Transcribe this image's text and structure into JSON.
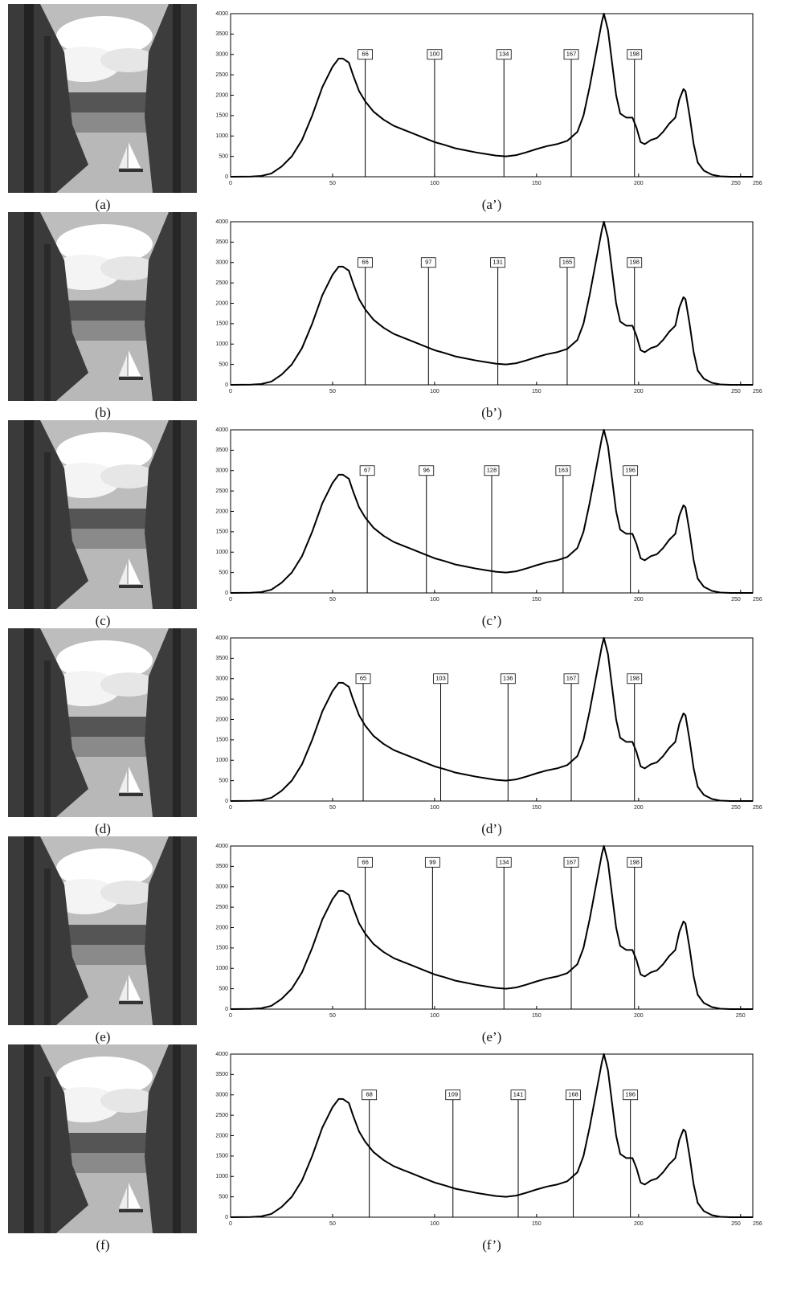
{
  "chart_data": [
    {
      "type": "line",
      "image_label": "(a)",
      "caption": "(a’)",
      "color": "#000000",
      "x": [
        0,
        10,
        15,
        20,
        25,
        30,
        35,
        40,
        45,
        50,
        53,
        55,
        58,
        60,
        63,
        66,
        70,
        75,
        80,
        85,
        90,
        95,
        100,
        105,
        110,
        115,
        120,
        125,
        130,
        135,
        140,
        145,
        150,
        155,
        160,
        165,
        170,
        173,
        176,
        179,
        182,
        183,
        185,
        187,
        189,
        191,
        194,
        197,
        199,
        201,
        203,
        206,
        209,
        212,
        215,
        218,
        220,
        222,
        223,
        225,
        227,
        229,
        232,
        236,
        240,
        245,
        256
      ],
      "values": [
        0,
        5,
        20,
        80,
        250,
        500,
        900,
        1500,
        2200,
        2700,
        2900,
        2900,
        2800,
        2500,
        2100,
        1850,
        1600,
        1400,
        1250,
        1150,
        1050,
        950,
        850,
        780,
        700,
        650,
        600,
        560,
        520,
        500,
        530,
        600,
        680,
        750,
        800,
        880,
        1100,
        1500,
        2200,
        3000,
        3800,
        4000,
        3600,
        2800,
        2000,
        1550,
        1450,
        1450,
        1200,
        850,
        800,
        900,
        950,
        1100,
        1300,
        1450,
        1900,
        2150,
        2100,
        1500,
        800,
        350,
        150,
        50,
        10,
        0,
        0
      ],
      "thresholds": [
        66,
        100,
        134,
        167,
        198
      ],
      "xlim": [
        0,
        256
      ],
      "ylim": [
        0,
        4000
      ],
      "xticks": [
        0,
        50,
        100,
        150,
        200,
        250,
        256
      ],
      "yticks": [
        0,
        500,
        1000,
        1500,
        2000,
        2500,
        3000,
        3500,
        4000
      ]
    },
    {
      "type": "line",
      "image_label": "(b)",
      "caption": "(b’)",
      "color": "#000000",
      "x": [
        0,
        10,
        15,
        20,
        25,
        30,
        35,
        40,
        45,
        50,
        53,
        55,
        58,
        60,
        63,
        66,
        70,
        75,
        80,
        85,
        90,
        95,
        100,
        105,
        110,
        115,
        120,
        125,
        130,
        135,
        140,
        145,
        150,
        155,
        160,
        165,
        170,
        173,
        176,
        179,
        182,
        183,
        185,
        187,
        189,
        191,
        194,
        197,
        199,
        201,
        203,
        206,
        209,
        212,
        215,
        218,
        220,
        222,
        223,
        225,
        227,
        229,
        232,
        236,
        240,
        245,
        256
      ],
      "values": [
        0,
        5,
        20,
        80,
        250,
        500,
        900,
        1500,
        2200,
        2700,
        2900,
        2900,
        2800,
        2500,
        2100,
        1850,
        1600,
        1400,
        1250,
        1150,
        1050,
        950,
        850,
        780,
        700,
        650,
        600,
        560,
        520,
        500,
        530,
        600,
        680,
        750,
        800,
        880,
        1100,
        1500,
        2200,
        3000,
        3800,
        4000,
        3600,
        2800,
        2000,
        1550,
        1450,
        1450,
        1200,
        850,
        800,
        900,
        950,
        1100,
        1300,
        1450,
        1900,
        2150,
        2100,
        1500,
        800,
        350,
        150,
        50,
        10,
        0,
        0
      ],
      "thresholds": [
        66,
        97,
        131,
        165,
        198
      ],
      "xlim": [
        0,
        256
      ],
      "ylim": [
        0,
        4000
      ],
      "xticks": [
        0,
        50,
        100,
        150,
        200,
        250,
        256
      ],
      "yticks": [
        0,
        500,
        1000,
        1500,
        2000,
        2500,
        3000,
        3500,
        4000
      ]
    },
    {
      "type": "line",
      "image_label": "(c)",
      "caption": "(c’)",
      "color": "#000000",
      "x": [
        0,
        10,
        15,
        20,
        25,
        30,
        35,
        40,
        45,
        50,
        53,
        55,
        58,
        60,
        63,
        66,
        70,
        75,
        80,
        85,
        90,
        95,
        100,
        105,
        110,
        115,
        120,
        125,
        130,
        135,
        140,
        145,
        150,
        155,
        160,
        165,
        170,
        173,
        176,
        179,
        182,
        183,
        185,
        187,
        189,
        191,
        194,
        197,
        199,
        201,
        203,
        206,
        209,
        212,
        215,
        218,
        220,
        222,
        223,
        225,
        227,
        229,
        232,
        236,
        240,
        245,
        256
      ],
      "values": [
        0,
        5,
        20,
        80,
        250,
        500,
        900,
        1500,
        2200,
        2700,
        2900,
        2900,
        2800,
        2500,
        2100,
        1850,
        1600,
        1400,
        1250,
        1150,
        1050,
        950,
        850,
        780,
        700,
        650,
        600,
        560,
        520,
        500,
        530,
        600,
        680,
        750,
        800,
        880,
        1100,
        1500,
        2200,
        3000,
        3800,
        4000,
        3600,
        2800,
        2000,
        1550,
        1450,
        1450,
        1200,
        850,
        800,
        900,
        950,
        1100,
        1300,
        1450,
        1900,
        2150,
        2100,
        1500,
        800,
        350,
        150,
        50,
        10,
        0,
        0
      ],
      "thresholds": [
        67,
        96,
        128,
        163,
        196
      ],
      "xlim": [
        0,
        256
      ],
      "ylim": [
        0,
        4000
      ],
      "xticks": [
        0,
        50,
        100,
        150,
        200,
        250,
        256
      ],
      "yticks": [
        0,
        500,
        1000,
        1500,
        2000,
        2500,
        3000,
        3500,
        4000
      ]
    },
    {
      "type": "line",
      "image_label": "(d)",
      "caption": "(d’)",
      "color": "#000000",
      "x": [
        0,
        10,
        15,
        20,
        25,
        30,
        35,
        40,
        45,
        50,
        53,
        55,
        58,
        60,
        63,
        66,
        70,
        75,
        80,
        85,
        90,
        95,
        100,
        105,
        110,
        115,
        120,
        125,
        130,
        135,
        140,
        145,
        150,
        155,
        160,
        165,
        170,
        173,
        176,
        179,
        182,
        183,
        185,
        187,
        189,
        191,
        194,
        197,
        199,
        201,
        203,
        206,
        209,
        212,
        215,
        218,
        220,
        222,
        223,
        225,
        227,
        229,
        232,
        236,
        240,
        245,
        256
      ],
      "values": [
        0,
        5,
        20,
        80,
        250,
        500,
        900,
        1500,
        2200,
        2700,
        2900,
        2900,
        2800,
        2500,
        2100,
        1850,
        1600,
        1400,
        1250,
        1150,
        1050,
        950,
        850,
        780,
        700,
        650,
        600,
        560,
        520,
        500,
        530,
        600,
        680,
        750,
        800,
        880,
        1100,
        1500,
        2200,
        3000,
        3800,
        4000,
        3600,
        2800,
        2000,
        1550,
        1450,
        1450,
        1200,
        850,
        800,
        900,
        950,
        1100,
        1300,
        1450,
        1900,
        2150,
        2100,
        1500,
        800,
        350,
        150,
        50,
        10,
        0,
        0
      ],
      "thresholds": [
        65,
        103,
        136,
        167,
        198
      ],
      "xlim": [
        0,
        256
      ],
      "ylim": [
        0,
        4000
      ],
      "xticks": [
        0,
        50,
        100,
        150,
        200,
        250,
        256
      ],
      "yticks": [
        0,
        500,
        1000,
        1500,
        2000,
        2500,
        3000,
        3500,
        4000
      ]
    },
    {
      "type": "line",
      "image_label": "(e)",
      "caption": "(e’)",
      "color": "#000000",
      "x": [
        0,
        10,
        15,
        20,
        25,
        30,
        35,
        40,
        45,
        50,
        53,
        55,
        58,
        60,
        63,
        66,
        70,
        75,
        80,
        85,
        90,
        95,
        100,
        105,
        110,
        115,
        120,
        125,
        130,
        135,
        140,
        145,
        150,
        155,
        160,
        165,
        170,
        173,
        176,
        179,
        182,
        183,
        185,
        187,
        189,
        191,
        194,
        197,
        199,
        201,
        203,
        206,
        209,
        212,
        215,
        218,
        220,
        222,
        223,
        225,
        227,
        229,
        232,
        236,
        240,
        245,
        256
      ],
      "values": [
        0,
        5,
        20,
        80,
        250,
        500,
        900,
        1500,
        2200,
        2700,
        2900,
        2900,
        2800,
        2500,
        2100,
        1850,
        1600,
        1400,
        1250,
        1150,
        1050,
        950,
        850,
        780,
        700,
        650,
        600,
        560,
        520,
        500,
        530,
        600,
        680,
        750,
        800,
        880,
        1100,
        1500,
        2200,
        3000,
        3800,
        4000,
        3600,
        2800,
        2000,
        1550,
        1450,
        1450,
        1200,
        850,
        800,
        900,
        950,
        1100,
        1300,
        1450,
        1900,
        2150,
        2100,
        1500,
        800,
        350,
        150,
        50,
        10,
        0,
        0
      ],
      "thresholds": [
        66,
        99,
        134,
        167,
        198
      ],
      "xlim": [
        0,
        256
      ],
      "ylim": [
        0,
        4000
      ],
      "xticks": [
        0,
        50,
        100,
        150,
        200,
        250
      ],
      "yticks": [
        0,
        500,
        1000,
        1500,
        2000,
        2500,
        3000,
        3500,
        4000
      ]
    },
    {
      "type": "line",
      "image_label": "(f)",
      "caption": "(f’)",
      "color": "#000000",
      "x": [
        0,
        10,
        15,
        20,
        25,
        30,
        35,
        40,
        45,
        50,
        53,
        55,
        58,
        60,
        63,
        66,
        70,
        75,
        80,
        85,
        90,
        95,
        100,
        105,
        110,
        115,
        120,
        125,
        130,
        135,
        140,
        145,
        150,
        155,
        160,
        165,
        170,
        173,
        176,
        179,
        182,
        183,
        185,
        187,
        189,
        191,
        194,
        197,
        199,
        201,
        203,
        206,
        209,
        212,
        215,
        218,
        220,
        222,
        223,
        225,
        227,
        229,
        232,
        236,
        240,
        245,
        256
      ],
      "values": [
        0,
        5,
        20,
        80,
        250,
        500,
        900,
        1500,
        2200,
        2700,
        2900,
        2900,
        2800,
        2500,
        2100,
        1850,
        1600,
        1400,
        1250,
        1150,
        1050,
        950,
        850,
        780,
        700,
        650,
        600,
        560,
        520,
        500,
        530,
        600,
        680,
        750,
        800,
        880,
        1100,
        1500,
        2200,
        3000,
        3800,
        4000,
        3600,
        2800,
        2000,
        1550,
        1450,
        1450,
        1200,
        850,
        800,
        900,
        950,
        1100,
        1300,
        1450,
        1900,
        2150,
        2100,
        1500,
        800,
        350,
        150,
        50,
        10,
        0,
        0
      ],
      "thresholds": [
        68,
        109,
        141,
        168,
        196
      ],
      "xlim": [
        0,
        256
      ],
      "ylim": [
        0,
        4000
      ],
      "xticks": [
        0,
        50,
        100,
        150,
        200,
        250,
        256
      ],
      "yticks": [
        0,
        500,
        1000,
        1500,
        2000,
        2500,
        3000,
        3500,
        4000
      ]
    }
  ]
}
